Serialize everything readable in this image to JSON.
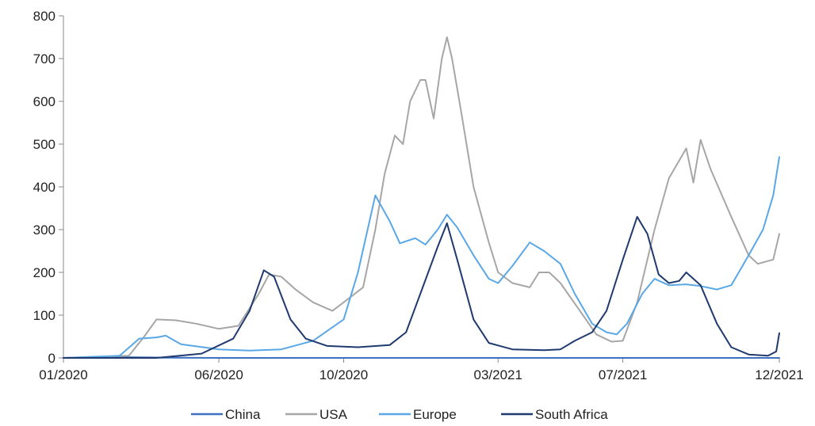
{
  "chart_data": {
    "type": "line",
    "title": "",
    "xlabel": "",
    "ylabel": "",
    "ylim": [
      0,
      800
    ],
    "yticks": [
      0,
      100,
      200,
      300,
      400,
      500,
      600,
      700,
      800
    ],
    "xlim": [
      "2020-01",
      "2021-12"
    ],
    "xticks": [
      "01/2020",
      "06/2020",
      "10/2020",
      "03/2021",
      "07/2021",
      "12/2021"
    ],
    "grid": false,
    "legend_position": "bottom",
    "series": [
      {
        "name": "China",
        "color": "#3f6fbf",
        "points": [
          [
            "2020-01-01",
            0
          ],
          [
            "2020-02-15",
            2
          ],
          [
            "2020-04-01",
            1
          ],
          [
            "2020-06-01",
            0
          ],
          [
            "2020-12-01",
            0
          ],
          [
            "2021-06-01",
            0
          ],
          [
            "2021-12-01",
            0
          ]
        ]
      },
      {
        "name": "USA",
        "color": "#a6a6a6",
        "points": [
          [
            "2020-01-01",
            0
          ],
          [
            "2020-03-05",
            5
          ],
          [
            "2020-03-20",
            50
          ],
          [
            "2020-04-01",
            90
          ],
          [
            "2020-04-20",
            88
          ],
          [
            "2020-05-10",
            80
          ],
          [
            "2020-06-01",
            68
          ],
          [
            "2020-06-20",
            75
          ],
          [
            "2020-07-10",
            150
          ],
          [
            "2020-07-20",
            195
          ],
          [
            "2020-08-01",
            190
          ],
          [
            "2020-08-15",
            160
          ],
          [
            "2020-09-01",
            130
          ],
          [
            "2020-09-20",
            110
          ],
          [
            "2020-10-01",
            130
          ],
          [
            "2020-10-20",
            165
          ],
          [
            "2020-11-01",
            300
          ],
          [
            "2020-11-10",
            430
          ],
          [
            "2020-11-20",
            520
          ],
          [
            "2020-11-28",
            500
          ],
          [
            "2020-12-05",
            600
          ],
          [
            "2020-12-15",
            650
          ],
          [
            "2020-12-20",
            650
          ],
          [
            "2020-12-28",
            560
          ],
          [
            "2021-01-05",
            700
          ],
          [
            "2021-01-10",
            750
          ],
          [
            "2021-01-15",
            700
          ],
          [
            "2021-01-25",
            560
          ],
          [
            "2021-02-05",
            400
          ],
          [
            "2021-02-20",
            270
          ],
          [
            "2021-03-01",
            200
          ],
          [
            "2021-03-15",
            175
          ],
          [
            "2021-04-01",
            165
          ],
          [
            "2021-04-10",
            200
          ],
          [
            "2021-04-20",
            200
          ],
          [
            "2021-05-01",
            175
          ],
          [
            "2021-05-20",
            110
          ],
          [
            "2021-06-05",
            55
          ],
          [
            "2021-06-20",
            38
          ],
          [
            "2021-07-01",
            40
          ],
          [
            "2021-07-15",
            130
          ],
          [
            "2021-08-01",
            300
          ],
          [
            "2021-08-15",
            420
          ],
          [
            "2021-09-01",
            490
          ],
          [
            "2021-09-08",
            410
          ],
          [
            "2021-09-15",
            510
          ],
          [
            "2021-09-25",
            440
          ],
          [
            "2021-10-15",
            330
          ],
          [
            "2021-11-01",
            240
          ],
          [
            "2021-11-10",
            220
          ],
          [
            "2021-11-25",
            230
          ],
          [
            "2021-12-01",
            290
          ]
        ]
      },
      {
        "name": "Europe",
        "color": "#5aa7e6",
        "points": [
          [
            "2020-01-01",
            0
          ],
          [
            "2020-02-25",
            5
          ],
          [
            "2020-03-15",
            45
          ],
          [
            "2020-04-01",
            48
          ],
          [
            "2020-04-10",
            52
          ],
          [
            "2020-04-25",
            32
          ],
          [
            "2020-06-01",
            20
          ],
          [
            "2020-07-01",
            17
          ],
          [
            "2020-08-01",
            20
          ],
          [
            "2020-09-01",
            40
          ],
          [
            "2020-10-01",
            90
          ],
          [
            "2020-10-15",
            200
          ],
          [
            "2020-11-01",
            380
          ],
          [
            "2020-11-15",
            320
          ],
          [
            "2020-11-25",
            268
          ],
          [
            "2020-12-10",
            280
          ],
          [
            "2020-12-20",
            265
          ],
          [
            "2021-01-01",
            300
          ],
          [
            "2021-01-10",
            335
          ],
          [
            "2021-01-20",
            305
          ],
          [
            "2021-02-05",
            240
          ],
          [
            "2021-02-20",
            185
          ],
          [
            "2021-03-01",
            175
          ],
          [
            "2021-03-15",
            215
          ],
          [
            "2021-04-01",
            270
          ],
          [
            "2021-04-15",
            250
          ],
          [
            "2021-05-01",
            220
          ],
          [
            "2021-05-15",
            150
          ],
          [
            "2021-06-01",
            80
          ],
          [
            "2021-06-15",
            60
          ],
          [
            "2021-06-25",
            55
          ],
          [
            "2021-07-05",
            80
          ],
          [
            "2021-07-20",
            150
          ],
          [
            "2021-08-01",
            185
          ],
          [
            "2021-08-15",
            170
          ],
          [
            "2021-09-01",
            172
          ],
          [
            "2021-09-15",
            168
          ],
          [
            "2021-10-01",
            160
          ],
          [
            "2021-10-15",
            170
          ],
          [
            "2021-11-01",
            240
          ],
          [
            "2021-11-15",
            300
          ],
          [
            "2021-11-25",
            380
          ],
          [
            "2021-12-01",
            470
          ]
        ]
      },
      {
        "name": "South Africa",
        "color": "#1f3a6e",
        "points": [
          [
            "2020-01-01",
            0
          ],
          [
            "2020-04-01",
            0
          ],
          [
            "2020-05-15",
            10
          ],
          [
            "2020-06-15",
            45
          ],
          [
            "2020-07-01",
            110
          ],
          [
            "2020-07-15",
            205
          ],
          [
            "2020-07-25",
            190
          ],
          [
            "2020-08-10",
            90
          ],
          [
            "2020-08-25",
            45
          ],
          [
            "2020-09-15",
            28
          ],
          [
            "2020-10-15",
            25
          ],
          [
            "2020-11-15",
            30
          ],
          [
            "2020-12-01",
            60
          ],
          [
            "2020-12-15",
            150
          ],
          [
            "2021-01-01",
            260
          ],
          [
            "2021-01-10",
            315
          ],
          [
            "2021-01-20",
            230
          ],
          [
            "2021-02-05",
            90
          ],
          [
            "2021-02-20",
            35
          ],
          [
            "2021-03-15",
            20
          ],
          [
            "2021-04-15",
            18
          ],
          [
            "2021-05-01",
            20
          ],
          [
            "2021-05-15",
            40
          ],
          [
            "2021-06-01",
            60
          ],
          [
            "2021-06-15",
            110
          ],
          [
            "2021-07-01",
            230
          ],
          [
            "2021-07-15",
            330
          ],
          [
            "2021-07-25",
            290
          ],
          [
            "2021-08-05",
            195
          ],
          [
            "2021-08-15",
            175
          ],
          [
            "2021-08-25",
            180
          ],
          [
            "2021-09-01",
            200
          ],
          [
            "2021-09-15",
            170
          ],
          [
            "2021-10-01",
            80
          ],
          [
            "2021-10-15",
            25
          ],
          [
            "2021-11-01",
            8
          ],
          [
            "2021-11-20",
            5
          ],
          [
            "2021-11-28",
            15
          ],
          [
            "2021-12-01",
            58
          ]
        ]
      }
    ]
  }
}
